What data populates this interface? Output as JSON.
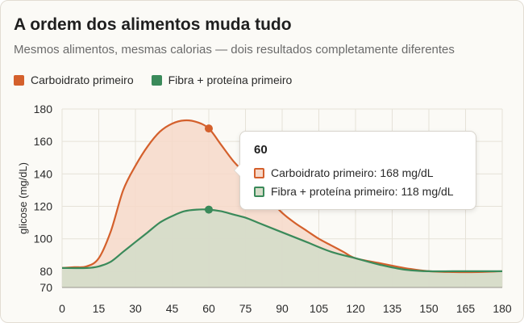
{
  "colors": {
    "carb": "#d4602c",
    "carb_fill": "#f6d8c9",
    "fiber": "#3a8a5a",
    "fiber_fill": "#d6dcc9",
    "grid": "#e6e2d8",
    "axis": "#9a968d"
  },
  "chart_data": {
    "type": "line",
    "title": "A ordem dos alimentos muda tudo",
    "subtitle": "Mesmos alimentos, mesmas calorias — dois resultados completamente diferentes",
    "xlabel": "",
    "ylabel": "glicose (mg/dL)",
    "xlim": [
      0,
      180
    ],
    "ylim": [
      70,
      180
    ],
    "x_ticks": [
      0,
      15,
      30,
      45,
      60,
      75,
      90,
      105,
      120,
      135,
      150,
      165,
      180
    ],
    "y_ticks": [
      70,
      80,
      100,
      120,
      140,
      160,
      180
    ],
    "legend_position": "top-left",
    "series": [
      {
        "name": "Carboidrato primeiro",
        "x": [
          0,
          5,
          10,
          15,
          20,
          25,
          30,
          35,
          40,
          45,
          50,
          55,
          60,
          65,
          70,
          75,
          80,
          85,
          90,
          95,
          100,
          105,
          110,
          115,
          120,
          130,
          140,
          150,
          160,
          170,
          180
        ],
        "values": [
          82,
          82.5,
          83,
          88,
          105,
          130,
          145,
          157,
          166,
          171,
          173,
          172,
          168,
          158,
          148,
          140,
          132,
          124,
          116,
          110,
          105,
          100,
          96,
          92,
          88,
          85,
          82,
          80,
          79.5,
          79.5,
          80
        ]
      },
      {
        "name": "Fibra + proteína primeiro",
        "x": [
          0,
          10,
          15,
          20,
          25,
          30,
          35,
          40,
          45,
          50,
          55,
          60,
          65,
          70,
          75,
          80,
          90,
          100,
          110,
          120,
          130,
          140,
          150,
          160,
          170,
          180
        ],
        "values": [
          82,
          82,
          83,
          86,
          92,
          98,
          104,
          110,
          114,
          117,
          118,
          118,
          117,
          115,
          113,
          110,
          104,
          98,
          92,
          88,
          84,
          81,
          80,
          80,
          80,
          80
        ]
      }
    ],
    "highlight": {
      "x": 60,
      "label": "60",
      "rows": [
        {
          "series": "Carboidrato primeiro",
          "value": 168,
          "text": "Carboidrato primeiro: 168 mg/dL"
        },
        {
          "series": "Fibra + proteína primeiro",
          "value": 118,
          "text": "Fibra + proteína primeiro: 118 mg/dL"
        }
      ]
    }
  }
}
